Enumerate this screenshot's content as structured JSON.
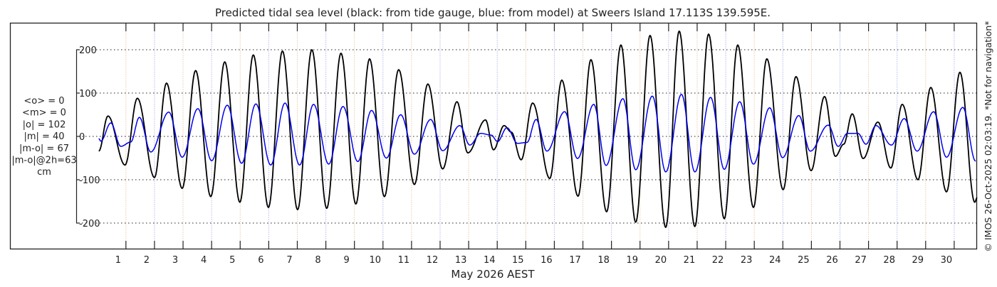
{
  "chart_data": {
    "type": "line",
    "title": "Predicted tidal sea level (black: from tide gauge, blue: from model) at Sweers Island 17.113S 139.595E.",
    "xlabel": "May 2026 AEST",
    "ylabel": "",
    "x_unit": "days (tick n = start of day boundary n)",
    "xlim": [
      -3.06,
      30.8
    ],
    "ylim": [
      -262,
      262
    ],
    "yticks": [
      -200,
      -100,
      0,
      100,
      200
    ],
    "ytick_labels": [
      "-200",
      "-100",
      "0",
      "100",
      "200"
    ],
    "xticks": [
      1,
      2,
      3,
      4,
      5,
      6,
      7,
      8,
      9,
      10,
      11,
      12,
      13,
      14,
      15,
      16,
      17,
      18,
      19,
      20,
      21,
      22,
      23,
      24,
      25,
      26,
      27,
      28,
      29,
      30
    ],
    "xtick_labels": [
      "1",
      "2",
      "3",
      "4",
      "5",
      "6",
      "7",
      "8",
      "9",
      "10",
      "11",
      "12",
      "13",
      "14",
      "15",
      "16",
      "17",
      "18",
      "19",
      "20",
      "21",
      "22",
      "23",
      "24",
      "25",
      "26",
      "27",
      "28",
      "29",
      "30"
    ],
    "grid": true,
    "stats": [
      "<o> = 0",
      "<m> = 0",
      "|o| = 102",
      "|m| = 40",
      "|m-o| = 67",
      "|m-o|@2h=63",
      "cm"
    ],
    "series": [
      {
        "name": "tide gauge",
        "color": "#000000",
        "extrema_t": [
          0.05,
          0.37,
          0.97,
          1.4,
          2.0,
          2.42,
          2.97,
          3.44,
          3.97,
          4.46,
          4.99,
          5.46,
          5.99,
          6.48,
          7.01,
          7.51,
          8.03,
          8.53,
          9.05,
          9.53,
          10.05,
          10.55,
          11.1,
          11.57,
          12.09,
          12.59,
          12.97,
          13.59,
          13.87,
          14.24,
          14.49,
          14.84,
          15.24,
          15.84,
          16.26,
          16.83,
          17.28,
          17.83,
          18.33,
          18.85,
          19.35,
          19.9,
          20.37,
          20.92,
          21.4,
          21.95,
          22.42,
          22.97,
          23.44,
          24.01,
          24.46,
          24.99,
          25.46,
          25.84,
          26.13,
          26.43,
          26.81,
          27.33,
          27.78,
          28.18,
          28.73,
          29.18,
          29.73,
          30.2,
          30.72,
          30.8
        ],
        "extrema_v": [
          -34,
          47,
          -66,
          88,
          -95,
          123,
          -120,
          152,
          -139,
          172,
          -152,
          188,
          -164,
          197,
          -169,
          200,
          -166,
          192,
          -156,
          179,
          -139,
          154,
          -111,
          121,
          -75,
          80,
          -38,
          38,
          -31,
          25,
          10,
          -54,
          77,
          -97,
          130,
          -138,
          177,
          -174,
          211,
          -198,
          233,
          -210,
          243,
          -208,
          236,
          -190,
          211,
          -164,
          179,
          -123,
          138,
          -79,
          92,
          -46,
          -18,
          52,
          -51,
          33,
          -73,
          74,
          -100,
          113,
          -128,
          148,
          -152,
          -141
        ]
      },
      {
        "name": "model",
        "color": "#0000ee",
        "extrema_t": [
          0.05,
          0.12,
          0.47,
          0.82,
          1.17,
          1.47,
          1.87,
          2.5,
          2.97,
          3.52,
          4.0,
          4.55,
          5.05,
          5.55,
          6.07,
          6.57,
          7.08,
          7.57,
          8.1,
          8.6,
          9.12,
          9.6,
          10.12,
          10.62,
          11.1,
          11.67,
          12.09,
          12.69,
          13.04,
          13.42,
          13.79,
          14.01,
          14.34,
          14.71,
          15.04,
          15.36,
          15.74,
          16.36,
          16.81,
          17.38,
          17.81,
          18.4,
          18.85,
          19.43,
          19.9,
          20.45,
          20.92,
          21.47,
          21.95,
          22.49,
          22.97,
          23.54,
          23.99,
          24.56,
          24.96,
          25.59,
          25.94,
          26.26,
          26.63,
          26.91,
          27.26,
          27.8,
          28.25,
          28.7,
          29.28,
          29.73,
          30.3,
          30.75
        ],
        "extrema_v": [
          -5,
          -11,
          31,
          -23,
          -13,
          44,
          -36,
          56,
          -48,
          64,
          -56,
          72,
          -62,
          75,
          -66,
          77,
          -66,
          74,
          -64,
          69,
          -58,
          60,
          -50,
          50,
          -41,
          39,
          -33,
          25,
          -20,
          7,
          3,
          -12,
          20,
          -16,
          -14,
          39,
          -34,
          57,
          -51,
          74,
          -67,
          87,
          -77,
          93,
          -82,
          97,
          -82,
          90,
          -76,
          80,
          -64,
          66,
          -49,
          48,
          -34,
          26,
          -23,
          7,
          7,
          -18,
          25,
          -20,
          41,
          -34,
          57,
          -48,
          67,
          -57
        ]
      }
    ]
  },
  "footer": {
    "credit": "© IMOS 26-Oct-2025 02:03:19. *Not for navigation*"
  }
}
